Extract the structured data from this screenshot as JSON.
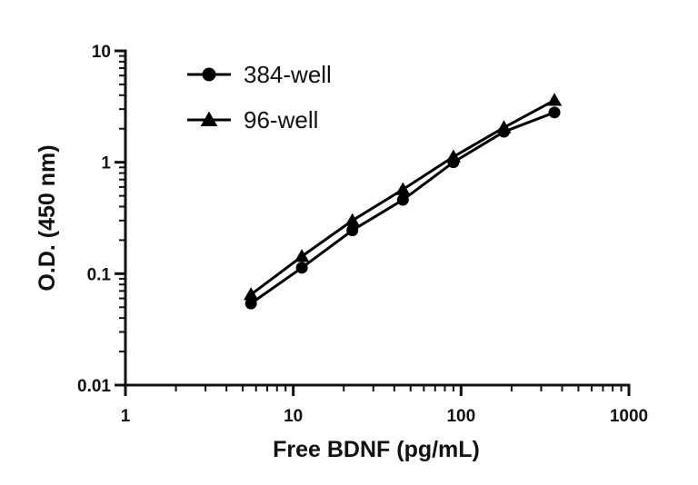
{
  "chart_data": {
    "type": "line",
    "xlabel": "Free BDNF (pg/mL)",
    "ylabel": "O.D. (450 nm)",
    "x_scale": "log",
    "y_scale": "log",
    "xlim": [
      1,
      1000
    ],
    "ylim": [
      0.01,
      10
    ],
    "x_ticks": [
      {
        "value": 1,
        "label": "1"
      },
      {
        "value": 10,
        "label": "10"
      },
      {
        "value": 100,
        "label": "100"
      },
      {
        "value": 1000,
        "label": "1000"
      }
    ],
    "y_ticks": [
      {
        "value": 0.01,
        "label": "0.01"
      },
      {
        "value": 0.1,
        "label": "0.1"
      },
      {
        "value": 1,
        "label": "1"
      },
      {
        "value": 10,
        "label": "10"
      }
    ],
    "grid": false,
    "legend_position": "top-left",
    "series": [
      {
        "name": "384-well",
        "marker": "circle",
        "color": "#000000",
        "x": [
          5.6,
          11.25,
          22.5,
          45,
          90,
          180,
          360
        ],
        "y": [
          0.054,
          0.113,
          0.245,
          0.46,
          1.0,
          1.88,
          2.8
        ]
      },
      {
        "name": "96-well",
        "marker": "triangle",
        "color": "#000000",
        "x": [
          5.6,
          11.25,
          22.5,
          45,
          90,
          180,
          360
        ],
        "y": [
          0.065,
          0.143,
          0.3,
          0.57,
          1.12,
          2.05,
          3.6
        ]
      }
    ]
  }
}
